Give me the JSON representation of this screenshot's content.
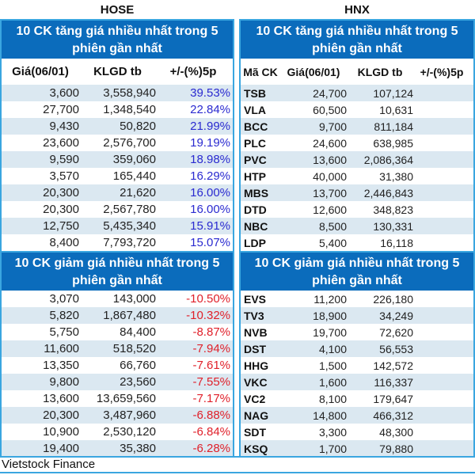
{
  "hose": {
    "label": "HOSE",
    "gainers_title": "10 CK tăng giá nhiều nhất trong 5 phiên gần nhất",
    "losers_title": "10 CK giảm giá nhiều nhất trong 5 phiên gần nhất",
    "columns": [
      "",
      "Giá(06/01)",
      "KLGD tb",
      "+/-(%)5p"
    ],
    "gainers": [
      [
        "",
        "3,600",
        "3,558,940",
        "39.53%"
      ],
      [
        "",
        "27,700",
        "1,348,540",
        "22.84%"
      ],
      [
        "",
        "9,430",
        "50,820",
        "21.99%"
      ],
      [
        "",
        "23,600",
        "2,576,700",
        "19.19%"
      ],
      [
        "",
        "9,590",
        "359,060",
        "18.98%"
      ],
      [
        "",
        "3,570",
        "165,440",
        "16.29%"
      ],
      [
        "",
        "20,300",
        "21,620",
        "16.00%"
      ],
      [
        "",
        "20,300",
        "2,567,780",
        "16.00%"
      ],
      [
        "",
        "12,750",
        "5,435,340",
        "15.91%"
      ],
      [
        "",
        "8,400",
        "7,793,720",
        "15.07%"
      ]
    ],
    "losers": [
      [
        "",
        "3,070",
        "143,000",
        "-10.50%"
      ],
      [
        "",
        "5,820",
        "1,867,480",
        "-10.32%"
      ],
      [
        "",
        "5,750",
        "84,400",
        "-8.87%"
      ],
      [
        "",
        "11,600",
        "518,520",
        "-7.94%"
      ],
      [
        "",
        "13,350",
        "66,760",
        "-7.61%"
      ],
      [
        "",
        "9,800",
        "23,560",
        "-7.55%"
      ],
      [
        "",
        "13,600",
        "13,659,560",
        "-7.17%"
      ],
      [
        "",
        "20,300",
        "3,487,960",
        "-6.88%"
      ],
      [
        "",
        "10,900",
        "2,530,120",
        "-6.84%"
      ],
      [
        "",
        "19,400",
        "35,380",
        "-6.28%"
      ]
    ]
  },
  "hnx": {
    "label": "HNX",
    "gainers_title": "10 CK tăng giá nhiều nhất trong 5 phiên gần nhất",
    "losers_title": "10 CK giảm giá nhiều nhất trong 5 phiên gần nhất",
    "columns": [
      "Mã CK",
      "Giá(06/01)",
      "KLGD tb",
      "+/-(%)5p"
    ],
    "gainers": [
      [
        "TSB",
        "24,700",
        "107,124",
        ""
      ],
      [
        "VLA",
        "60,500",
        "10,631",
        ""
      ],
      [
        "BCC",
        "9,700",
        "811,184",
        ""
      ],
      [
        "PLC",
        "24,600",
        "638,985",
        ""
      ],
      [
        "PVC",
        "13,600",
        "2,086,364",
        ""
      ],
      [
        "HTP",
        "40,000",
        "31,380",
        ""
      ],
      [
        "MBS",
        "13,700",
        "2,446,843",
        ""
      ],
      [
        "DTD",
        "12,600",
        "348,823",
        ""
      ],
      [
        "NBC",
        "8,500",
        "130,331",
        ""
      ],
      [
        "LDP",
        "5,400",
        "16,118",
        ""
      ]
    ],
    "losers": [
      [
        "EVS",
        "11,200",
        "226,180",
        ""
      ],
      [
        "TV3",
        "18,900",
        "34,249",
        ""
      ],
      [
        "NVB",
        "19,700",
        "72,620",
        ""
      ],
      [
        "DST",
        "4,100",
        "56,553",
        ""
      ],
      [
        "HHG",
        "1,500",
        "142,572",
        ""
      ],
      [
        "VKC",
        "1,600",
        "116,337",
        ""
      ],
      [
        "VC2",
        "8,100",
        "179,647",
        ""
      ],
      [
        "NAG",
        "14,800",
        "466,312",
        ""
      ],
      [
        "SDT",
        "3,300",
        "48,300",
        ""
      ],
      [
        "KSQ",
        "1,700",
        "79,880",
        ""
      ]
    ]
  },
  "footer": {
    "source": "Vietstock Finance"
  },
  "colors": {
    "header_band": "#0b6cbc",
    "row_alt": "#dbe8f1",
    "border": "#3aa6e0",
    "gain": "#2a2ad0",
    "loss": "#e0202a"
  }
}
